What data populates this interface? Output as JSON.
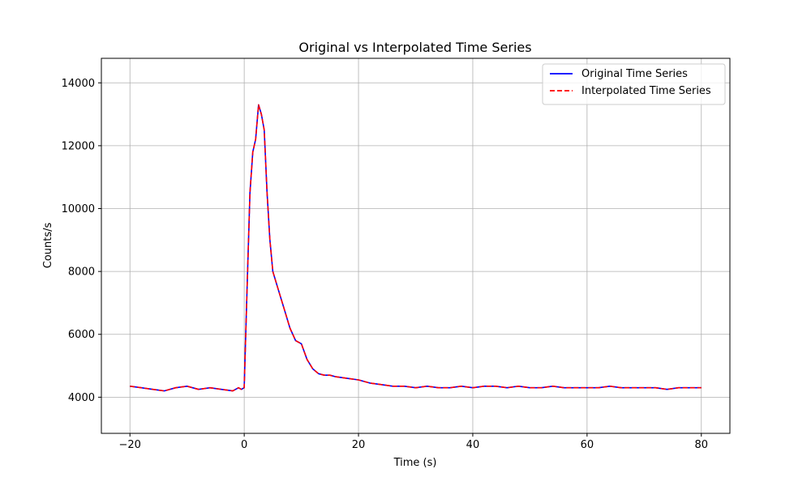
{
  "chart_data": {
    "type": "line",
    "title": "Original vs Interpolated Time Series",
    "xlabel": "Time (s)",
    "ylabel": "Counts/s",
    "xlim": [
      -25,
      85
    ],
    "ylim": [
      2850,
      14780
    ],
    "xticks": [
      -20,
      0,
      20,
      40,
      60,
      80
    ],
    "xtick_labels": [
      "−20",
      "0",
      "20",
      "40",
      "60",
      "80"
    ],
    "yticks": [
      4000,
      6000,
      8000,
      10000,
      12000,
      14000
    ],
    "ytick_labels": [
      "4000",
      "6000",
      "8000",
      "10000",
      "12000",
      "14000"
    ],
    "grid": true,
    "legend_position": "top-right",
    "x": [
      -20,
      -18,
      -16,
      -14,
      -12,
      -10,
      -8,
      -6,
      -4,
      -2,
      -1,
      -0.5,
      0,
      0.5,
      1,
      1.5,
      2,
      2.5,
      3,
      3.5,
      4,
      4.5,
      5,
      6,
      7,
      8,
      9,
      10,
      11,
      12,
      13,
      14,
      15,
      16,
      18,
      20,
      22,
      24,
      26,
      28,
      30,
      32,
      34,
      36,
      38,
      40,
      42,
      44,
      46,
      48,
      50,
      52,
      54,
      56,
      58,
      60,
      62,
      64,
      66,
      68,
      70,
      72,
      74,
      76,
      78,
      80
    ],
    "series": [
      {
        "name": "Original Time Series",
        "color": "#0000ff",
        "style": "solid",
        "values": [
          4350,
          4300,
          4250,
          4200,
          4300,
          4350,
          4250,
          4300,
          4250,
          4200,
          4300,
          4250,
          4300,
          7500,
          10500,
          11800,
          12200,
          13300,
          13000,
          12500,
          10500,
          9000,
          8000,
          7400,
          6800,
          6200,
          5800,
          5700,
          5200,
          4900,
          4750,
          4700,
          4700,
          4650,
          4600,
          4550,
          4450,
          4400,
          4350,
          4350,
          4300,
          4350,
          4300,
          4300,
          4350,
          4300,
          4350,
          4350,
          4300,
          4350,
          4300,
          4300,
          4350,
          4300,
          4300,
          4300,
          4300,
          4350,
          4300,
          4300,
          4300,
          4300,
          4250,
          4300,
          4300,
          4300
        ]
      },
      {
        "name": "Interpolated Time Series",
        "color": "#ff0000",
        "style": "dashed",
        "values": [
          4350,
          4300,
          4250,
          4200,
          4300,
          4350,
          4250,
          4300,
          4250,
          4200,
          4300,
          4250,
          4300,
          7500,
          10500,
          11800,
          12200,
          13300,
          13000,
          12500,
          10500,
          9000,
          8000,
          7400,
          6800,
          6200,
          5800,
          5700,
          5200,
          4900,
          4750,
          4700,
          4700,
          4650,
          4600,
          4550,
          4450,
          4400,
          4350,
          4350,
          4300,
          4350,
          4300,
          4300,
          4350,
          4300,
          4350,
          4350,
          4300,
          4350,
          4300,
          4300,
          4350,
          4300,
          4300,
          4300,
          4300,
          4350,
          4300,
          4300,
          4300,
          4300,
          4250,
          4300,
          4300,
          4300
        ]
      }
    ]
  }
}
